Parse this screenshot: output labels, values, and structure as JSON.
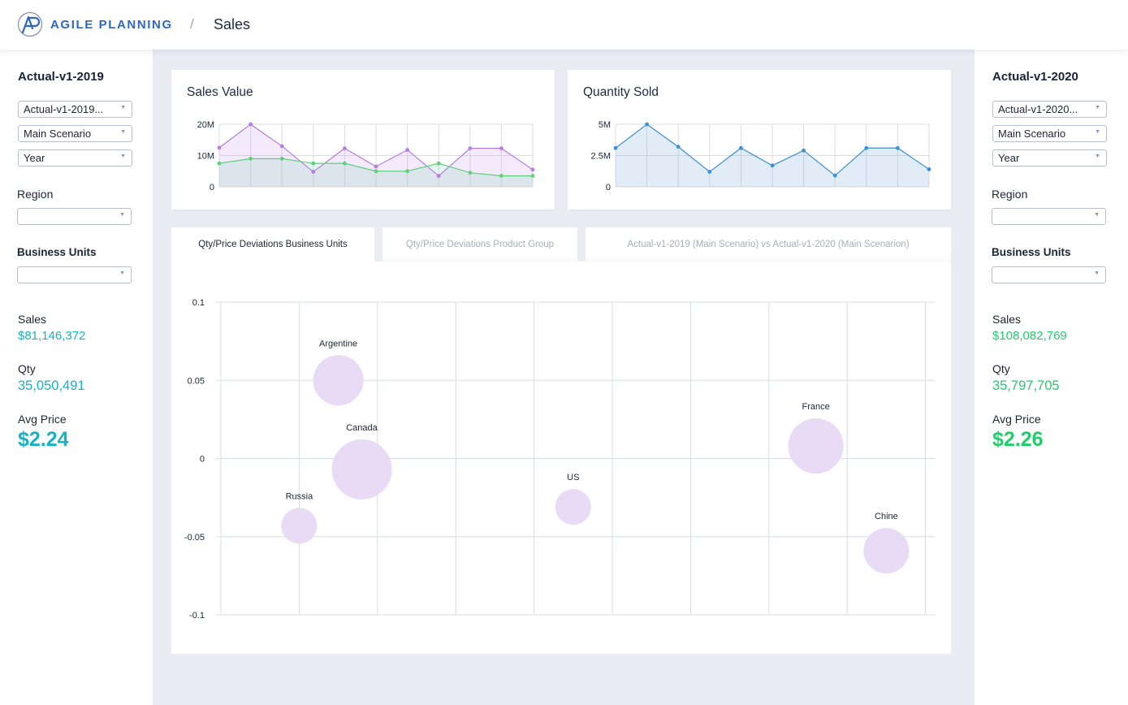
{
  "app": {
    "brand": "AGILE PLANNING",
    "separator": "/",
    "page": "Sales"
  },
  "colors": {
    "accent_blue": "#2f66c5",
    "left_metric": "#17b3c4",
    "right_metric": "#22cc6a",
    "bubble": "#e9dbf6"
  },
  "left_panel": {
    "version_title": "Actual-v1-2019",
    "version_select": "Actual-v1-2019...",
    "scenario_select": "Main Scenario",
    "period_select": "Year",
    "region_label": "Region",
    "region_select": "",
    "bu_label": "Business Units",
    "bu_select": "",
    "sales_label": "Sales",
    "sales_value": "$81,146,372",
    "qty_label": "Qty",
    "qty_value": "35,050,491",
    "avg_label": "Avg Price",
    "avg_value": "$2.24"
  },
  "right_panel": {
    "version_title": "Actual-v1-2020",
    "version_select": "Actual-v1-2020...",
    "scenario_select": "Main Scenario",
    "period_select": "Year",
    "region_label": "Region",
    "region_select": "",
    "bu_label": "Business Units",
    "bu_select": "",
    "sales_label": "Sales",
    "sales_value": "$108,082,769",
    "qty_label": "Qty",
    "qty_value": "35,797,705",
    "avg_label": "Avg Price",
    "avg_value": "$2.26"
  },
  "tabs": [
    {
      "label": "Qty/Price Deviations Business Units",
      "active": true
    },
    {
      "label": "Qty/Price Deviations Product Group",
      "active": false
    },
    {
      "label": "Actual-v1-2019 (Main Scenario) vs Actual-v1-2020 (Main Scenarion)",
      "active": false
    }
  ],
  "chart_data": [
    {
      "type": "area",
      "title": "Sales Value",
      "ylim": [
        0,
        20000000
      ],
      "yticks": [
        "0",
        "10M",
        "20M"
      ],
      "ytick_values": [
        0,
        10000000,
        20000000
      ],
      "grid": true,
      "series": [
        {
          "values": [
            12500000,
            20000000,
            13000000,
            4800000,
            12300000,
            6500000,
            11800000,
            3500000,
            12300000,
            12300000,
            5500000
          ],
          "color": "#b57ee0"
        },
        {
          "values": [
            7500000,
            9000000,
            9000000,
            7500000,
            7500000,
            5000000,
            5000000,
            7500000,
            4500000,
            3500000,
            3500000
          ],
          "color": "#5fd07c"
        }
      ]
    },
    {
      "type": "area",
      "title": "Quantity Sold",
      "ylim": [
        0,
        5000000
      ],
      "yticks": [
        "0",
        "2.5M",
        "5M"
      ],
      "ytick_values": [
        0,
        2500000,
        5000000
      ],
      "grid": true,
      "series": [
        {
          "values": [
            3100000,
            5000000,
            3200000,
            1200000,
            3100000,
            1700000,
            2900000,
            900000,
            3100000,
            3100000,
            1400000
          ],
          "color": "#3d8fd6"
        }
      ]
    },
    {
      "type": "scatter",
      "title": "",
      "ylim": [
        -0.1,
        0.1
      ],
      "yticks": [
        "0.1",
        "0.05",
        "0",
        "-0.05",
        "-0.1"
      ],
      "ytick_values": [
        0.1,
        0.05,
        0,
        -0.05,
        -0.1
      ],
      "grid": true,
      "points": [
        {
          "label": "Argentine",
          "x": 1.5,
          "y": 0.05,
          "size": 31
        },
        {
          "label": "Canada",
          "x": 1.8,
          "y": -0.007,
          "size": 37
        },
        {
          "label": "Russia",
          "x": 1.0,
          "y": -0.043,
          "size": 22
        },
        {
          "label": "US",
          "x": 4.5,
          "y": -0.031,
          "size": 22
        },
        {
          "label": "France",
          "x": 7.6,
          "y": 0.008,
          "size": 34
        },
        {
          "label": "Chine",
          "x": 8.5,
          "y": -0.059,
          "size": 28
        }
      ]
    }
  ]
}
